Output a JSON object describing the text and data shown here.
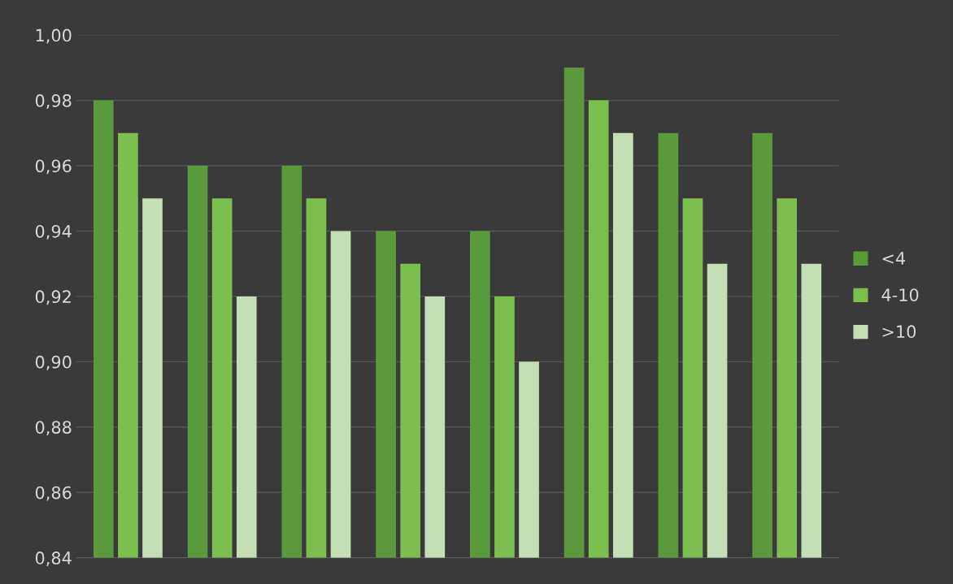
{
  "chart_data": {
    "type": "bar",
    "categories": [
      null,
      null,
      null,
      null,
      null,
      null,
      null,
      null
    ],
    "series": [
      {
        "name": "<4",
        "color": "#5b9a3c",
        "values": [
          0.98,
          0.96,
          0.96,
          0.94,
          0.94,
          0.99,
          0.97,
          0.97
        ]
      },
      {
        "name": "4-10",
        "color": "#7cbf4e",
        "values": [
          0.97,
          0.95,
          0.95,
          0.93,
          0.92,
          0.98,
          0.95,
          0.95
        ]
      },
      {
        "name": ">10",
        "color": "#c4dfb6",
        "values": [
          0.95,
          0.92,
          0.94,
          0.92,
          0.9,
          0.97,
          0.93,
          0.93
        ]
      }
    ],
    "ylim": [
      0.84,
      1.0
    ],
    "yticks": [
      {
        "value": 0.84,
        "label": "0,84"
      },
      {
        "value": 0.86,
        "label": "0,86"
      },
      {
        "value": 0.88,
        "label": "0,88"
      },
      {
        "value": 0.9,
        "label": "0,90"
      },
      {
        "value": 0.92,
        "label": "0,92"
      },
      {
        "value": 0.94,
        "label": "0,94"
      },
      {
        "value": 0.96,
        "label": "0,96"
      },
      {
        "value": 0.98,
        "label": "0,98"
      },
      {
        "value": 1.0,
        "label": "1,00"
      }
    ],
    "grid": "y",
    "legend": "right"
  }
}
